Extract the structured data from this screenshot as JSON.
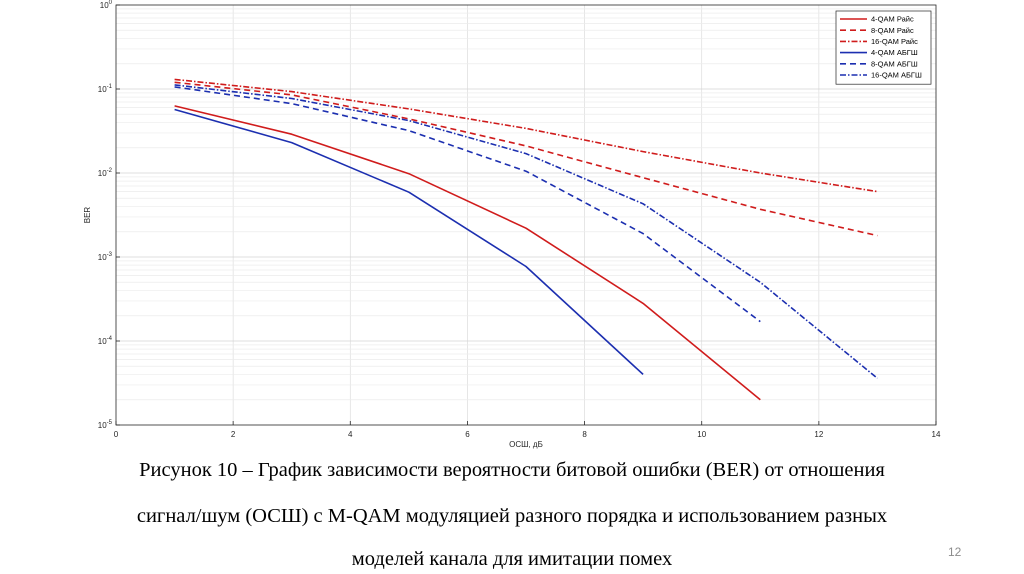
{
  "chart_data": {
    "type": "line",
    "title": "",
    "xlabel": "ОСШ, дБ",
    "ylabel": "BER",
    "xlim": [
      0,
      14
    ],
    "ylim": [
      1e-05,
      1
    ],
    "yscale": "log",
    "grid": true,
    "legend_position": "top-right",
    "x_ticks": [
      "0",
      "2",
      "4",
      "6",
      "8",
      "10",
      "12",
      "14"
    ],
    "y_ticks": [
      {
        "base": "10",
        "exp": "0"
      },
      {
        "base": "10",
        "exp": "-1"
      },
      {
        "base": "10",
        "exp": "-2"
      },
      {
        "base": "10",
        "exp": "-3"
      },
      {
        "base": "10",
        "exp": "-4"
      },
      {
        "base": "10",
        "exp": "-5"
      }
    ],
    "series": [
      {
        "name": "4-QAM Райс",
        "color": "#d01c1c",
        "style": "solid",
        "x": [
          1,
          3,
          5,
          7,
          9,
          11
        ],
        "y": [
          0.063,
          0.029,
          0.0098,
          0.0022,
          0.00028,
          2e-05
        ]
      },
      {
        "name": "8-QAM Райс",
        "color": "#d01c1c",
        "style": "dashed",
        "x": [
          1,
          3,
          5,
          7,
          9,
          11,
          13
        ],
        "y": [
          0.12,
          0.085,
          0.044,
          0.021,
          0.0088,
          0.0037,
          0.0018
        ]
      },
      {
        "name": "16-QAM Райс",
        "color": "#d01c1c",
        "style": "dashdot",
        "x": [
          1,
          3,
          5,
          7,
          9,
          11,
          13
        ],
        "y": [
          0.13,
          0.093,
          0.058,
          0.034,
          0.018,
          0.01,
          0.006
        ]
      },
      {
        "name": "4-QAM АБГШ",
        "color": "#1c2fb0",
        "style": "solid",
        "x": [
          1,
          3,
          5,
          7,
          9
        ],
        "y": [
          0.057,
          0.023,
          0.0059,
          0.00077,
          4e-05
        ]
      },
      {
        "name": "8-QAM АБГШ",
        "color": "#1c2fb0",
        "style": "dashed",
        "x": [
          1,
          3,
          5,
          7,
          9,
          11
        ],
        "y": [
          0.106,
          0.067,
          0.032,
          0.0105,
          0.0019,
          0.00017
        ]
      },
      {
        "name": "16-QAM АБГШ",
        "color": "#1c2fb0",
        "style": "dashdot",
        "x": [
          1,
          3,
          5,
          7,
          9,
          11,
          13
        ],
        "y": [
          0.112,
          0.077,
          0.042,
          0.017,
          0.0043,
          0.0005,
          3.6e-05
        ]
      }
    ]
  },
  "caption": {
    "line1": "Рисунок 10 – График зависимости вероятности битовой ошибки (BER) от отношения",
    "line2": "сигнал/шум (ОСШ) с M-QAM модуляцией разного порядка и использованием разных",
    "line3": "моделей канала для имитации помех"
  },
  "slide_number": "12"
}
